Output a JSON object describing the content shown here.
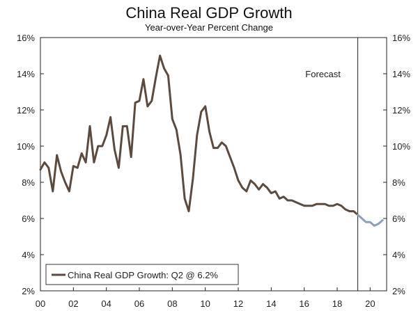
{
  "chart_data": {
    "type": "line",
    "title": "China Real GDP Growth",
    "subtitle": "Year-over-Year Percent Change",
    "ylim": [
      2,
      16
    ],
    "y_ticks": [
      2,
      4,
      6,
      8,
      10,
      12,
      14,
      16
    ],
    "y_tick_labels": [
      "2%",
      "4%",
      "6%",
      "8%",
      "10%",
      "12%",
      "14%",
      "16%"
    ],
    "x_range": [
      2000,
      2021
    ],
    "x_ticks": [
      2000,
      2002,
      2004,
      2006,
      2008,
      2010,
      2012,
      2014,
      2016,
      2018,
      2020
    ],
    "x_tick_labels": [
      "00",
      "02",
      "04",
      "06",
      "08",
      "10",
      "12",
      "14",
      "16",
      "18",
      "20"
    ],
    "grid": false,
    "forecast_start": 2019.25,
    "forecast_label": "Forecast",
    "legend_label": "China Real GDP Growth: Q2 @ 6.2%",
    "legend_position": "bottom-left",
    "colors": {
      "actual": "#5a4a3f",
      "forecast": "#8a9fbc",
      "axis": "#222222"
    },
    "series": [
      {
        "name": "China Real GDP Growth: Q2 @ 6.2%",
        "role": "actual",
        "x": [
          2000.0,
          2000.25,
          2000.5,
          2000.75,
          2001.0,
          2001.25,
          2001.5,
          2001.75,
          2002.0,
          2002.25,
          2002.5,
          2002.75,
          2003.0,
          2003.25,
          2003.5,
          2003.75,
          2004.0,
          2004.25,
          2004.5,
          2004.75,
          2005.0,
          2005.25,
          2005.5,
          2005.75,
          2006.0,
          2006.25,
          2006.5,
          2006.75,
          2007.0,
          2007.25,
          2007.5,
          2007.75,
          2008.0,
          2008.25,
          2008.5,
          2008.75,
          2009.0,
          2009.25,
          2009.5,
          2009.75,
          2010.0,
          2010.25,
          2010.5,
          2010.75,
          2011.0,
          2011.25,
          2011.5,
          2011.75,
          2012.0,
          2012.25,
          2012.5,
          2012.75,
          2013.0,
          2013.25,
          2013.5,
          2013.75,
          2014.0,
          2014.25,
          2014.5,
          2014.75,
          2015.0,
          2015.25,
          2015.5,
          2015.75,
          2016.0,
          2016.25,
          2016.5,
          2016.75,
          2017.0,
          2017.25,
          2017.5,
          2017.75,
          2018.0,
          2018.25,
          2018.5,
          2018.75,
          2019.0,
          2019.25
        ],
        "y": [
          8.7,
          9.1,
          8.8,
          7.5,
          9.5,
          8.6,
          8.0,
          7.5,
          8.9,
          8.8,
          9.6,
          9.1,
          11.1,
          9.1,
          10.0,
          10.0,
          10.6,
          11.6,
          9.8,
          8.8,
          11.1,
          11.1,
          9.4,
          12.4,
          12.5,
          13.7,
          12.2,
          12.5,
          13.8,
          15.0,
          14.3,
          13.9,
          11.5,
          10.9,
          9.5,
          7.1,
          6.4,
          8.2,
          10.6,
          11.9,
          12.2,
          10.8,
          9.9,
          9.9,
          10.2,
          10.0,
          9.4,
          8.8,
          8.1,
          7.7,
          7.5,
          8.1,
          7.9,
          7.6,
          7.9,
          7.7,
          7.4,
          7.5,
          7.1,
          7.2,
          7.0,
          7.0,
          6.9,
          6.8,
          6.7,
          6.7,
          6.7,
          6.8,
          6.8,
          6.8,
          6.7,
          6.7,
          6.8,
          6.7,
          6.5,
          6.4,
          6.4,
          6.2
        ]
      },
      {
        "name": "Forecast",
        "role": "forecast",
        "x": [
          2019.25,
          2019.5,
          2019.75,
          2020.0,
          2020.25,
          2020.5,
          2020.75
        ],
        "y": [
          6.2,
          6.0,
          5.8,
          5.8,
          5.6,
          5.7,
          5.9
        ]
      }
    ]
  }
}
